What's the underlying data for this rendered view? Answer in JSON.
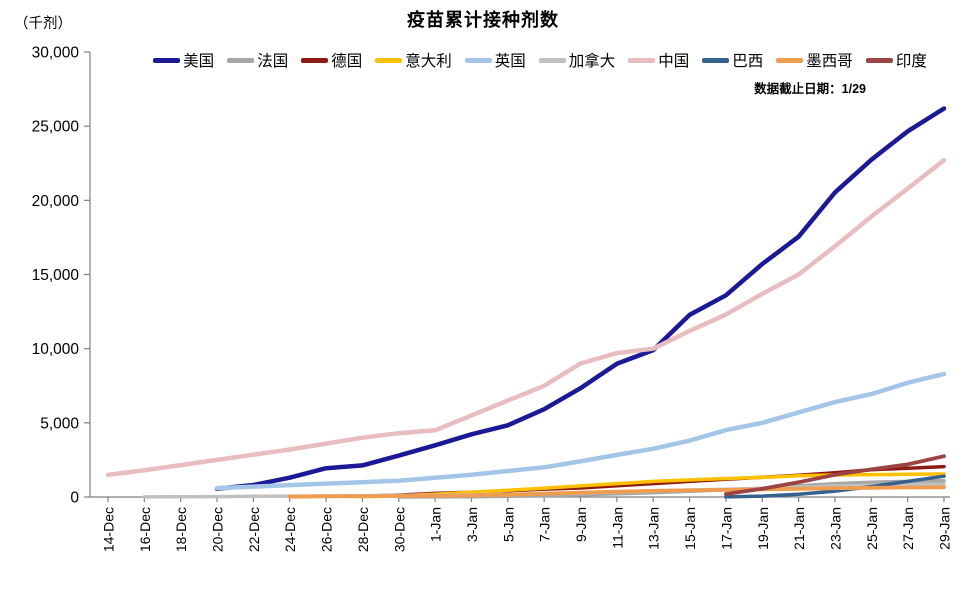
{
  "header": {
    "title": "疫苗累计接种剂数",
    "unit_label": "（千剂）",
    "note": "数据截止日期：1/29"
  },
  "chart_data": {
    "type": "line",
    "title": "疫苗累计接种剂数",
    "ylabel": "（千剂）",
    "note": "数据截止日期：1/29",
    "ylim": [
      0,
      30000
    ],
    "y_ticks": [
      0,
      5000,
      10000,
      15000,
      20000,
      25000,
      30000
    ],
    "grid": false,
    "legend_position": "top",
    "axis_color": "#808080",
    "tick_label_color": "#000000",
    "categories": [
      "14-Dec",
      "16-Dec",
      "18-Dec",
      "20-Dec",
      "22-Dec",
      "24-Dec",
      "26-Dec",
      "28-Dec",
      "30-Dec",
      "1-Jan",
      "3-Jan",
      "5-Jan",
      "7-Jan",
      "9-Jan",
      "11-Jan",
      "13-Jan",
      "15-Jan",
      "17-Jan",
      "19-Jan",
      "21-Jan",
      "23-Jan",
      "25-Jan",
      "27-Jan",
      "29-Jan"
    ],
    "series": [
      {
        "id": "usa",
        "name": "美国",
        "color": "#1A1A96",
        "width": 4.5,
        "values": [
          null,
          null,
          null,
          556,
          806,
          1300,
          1944,
          2127,
          2794,
          3487,
          4226,
          4836,
          5919,
          7334,
          8987,
          9900,
          12279,
          13595,
          15707,
          17546,
          20537,
          22734,
          24652,
          26193
        ]
      },
      {
        "id": "france",
        "name": "法国",
        "color": "#A6A6A6",
        "width": 3.5,
        "values": [
          null,
          null,
          null,
          null,
          null,
          null,
          null,
          null,
          0,
          5,
          20,
          45,
          80,
          140,
          220,
          280,
          390,
          480,
          585,
          750,
          900,
          1000,
          1050,
          1100
        ]
      },
      {
        "id": "germany",
        "name": "德国",
        "color": "#8E1B13",
        "width": 3.5,
        "values": [
          null,
          null,
          null,
          null,
          null,
          null,
          null,
          50,
          130,
          240,
          320,
          420,
          530,
          610,
          760,
          900,
          1050,
          1195,
          1335,
          1470,
          1640,
          1840,
          1944,
          2050
        ]
      },
      {
        "id": "italy",
        "name": "意大利",
        "color": "#FFC000",
        "width": 3.5,
        "values": [
          null,
          null,
          null,
          null,
          null,
          null,
          null,
          20,
          80,
          180,
          320,
          450,
          600,
          750,
          900,
          1050,
          1150,
          1250,
          1320,
          1430,
          1480,
          1510,
          1530,
          1550
        ]
      },
      {
        "id": "uk",
        "name": "英国",
        "color": "#A3C6E8",
        "width": 4.5,
        "values": [
          null,
          null,
          null,
          600,
          700,
          800,
          900,
          1000,
          1100,
          1300,
          1500,
          1750,
          2000,
          2400,
          2840,
          3250,
          3800,
          4510,
          5000,
          5700,
          6400,
          6940,
          7700,
          8300
        ]
      },
      {
        "id": "canada",
        "name": "加拿大",
        "color": "#C0C0C0",
        "width": 3.5,
        "values": [
          null,
          5,
          12,
          30,
          50,
          60,
          71,
          90,
          105,
          119,
          150,
          190,
          230,
          264,
          330,
          400,
          470,
          520,
          580,
          650,
          738,
          790,
          830,
          860
        ]
      },
      {
        "id": "china",
        "name": "中国",
        "color": "#E9BCC0",
        "width": 4.5,
        "values": [
          1500,
          1800,
          2150,
          2500,
          2850,
          3200,
          3600,
          4000,
          4300,
          4500,
          5500,
          6500,
          7500,
          9000,
          9700,
          10000,
          11200,
          12300,
          13700,
          15000,
          16900,
          18900,
          20800,
          22700
        ]
      },
      {
        "id": "brazil",
        "name": "巴西",
        "color": "#35618F",
        "width": 3.5,
        "values": [
          null,
          null,
          null,
          null,
          null,
          null,
          null,
          null,
          null,
          null,
          null,
          null,
          null,
          null,
          null,
          null,
          null,
          10,
          60,
          180,
          400,
          700,
          1050,
          1400
        ]
      },
      {
        "id": "mexico",
        "name": "墨西哥",
        "color": "#F09C4E",
        "width": 3.8,
        "values": [
          null,
          null,
          null,
          null,
          null,
          20,
          45,
          55,
          65,
          80,
          110,
          150,
          220,
          300,
          360,
          420,
          450,
          480,
          520,
          550,
          590,
          620,
          640,
          650
        ]
      },
      {
        "id": "india",
        "name": "印度",
        "color": "#9C4343",
        "width": 3.8,
        "values": [
          null,
          null,
          null,
          null,
          null,
          null,
          null,
          null,
          null,
          null,
          null,
          null,
          null,
          null,
          null,
          null,
          null,
          200,
          550,
          1000,
          1500,
          1860,
          2200,
          2750
        ]
      }
    ]
  }
}
